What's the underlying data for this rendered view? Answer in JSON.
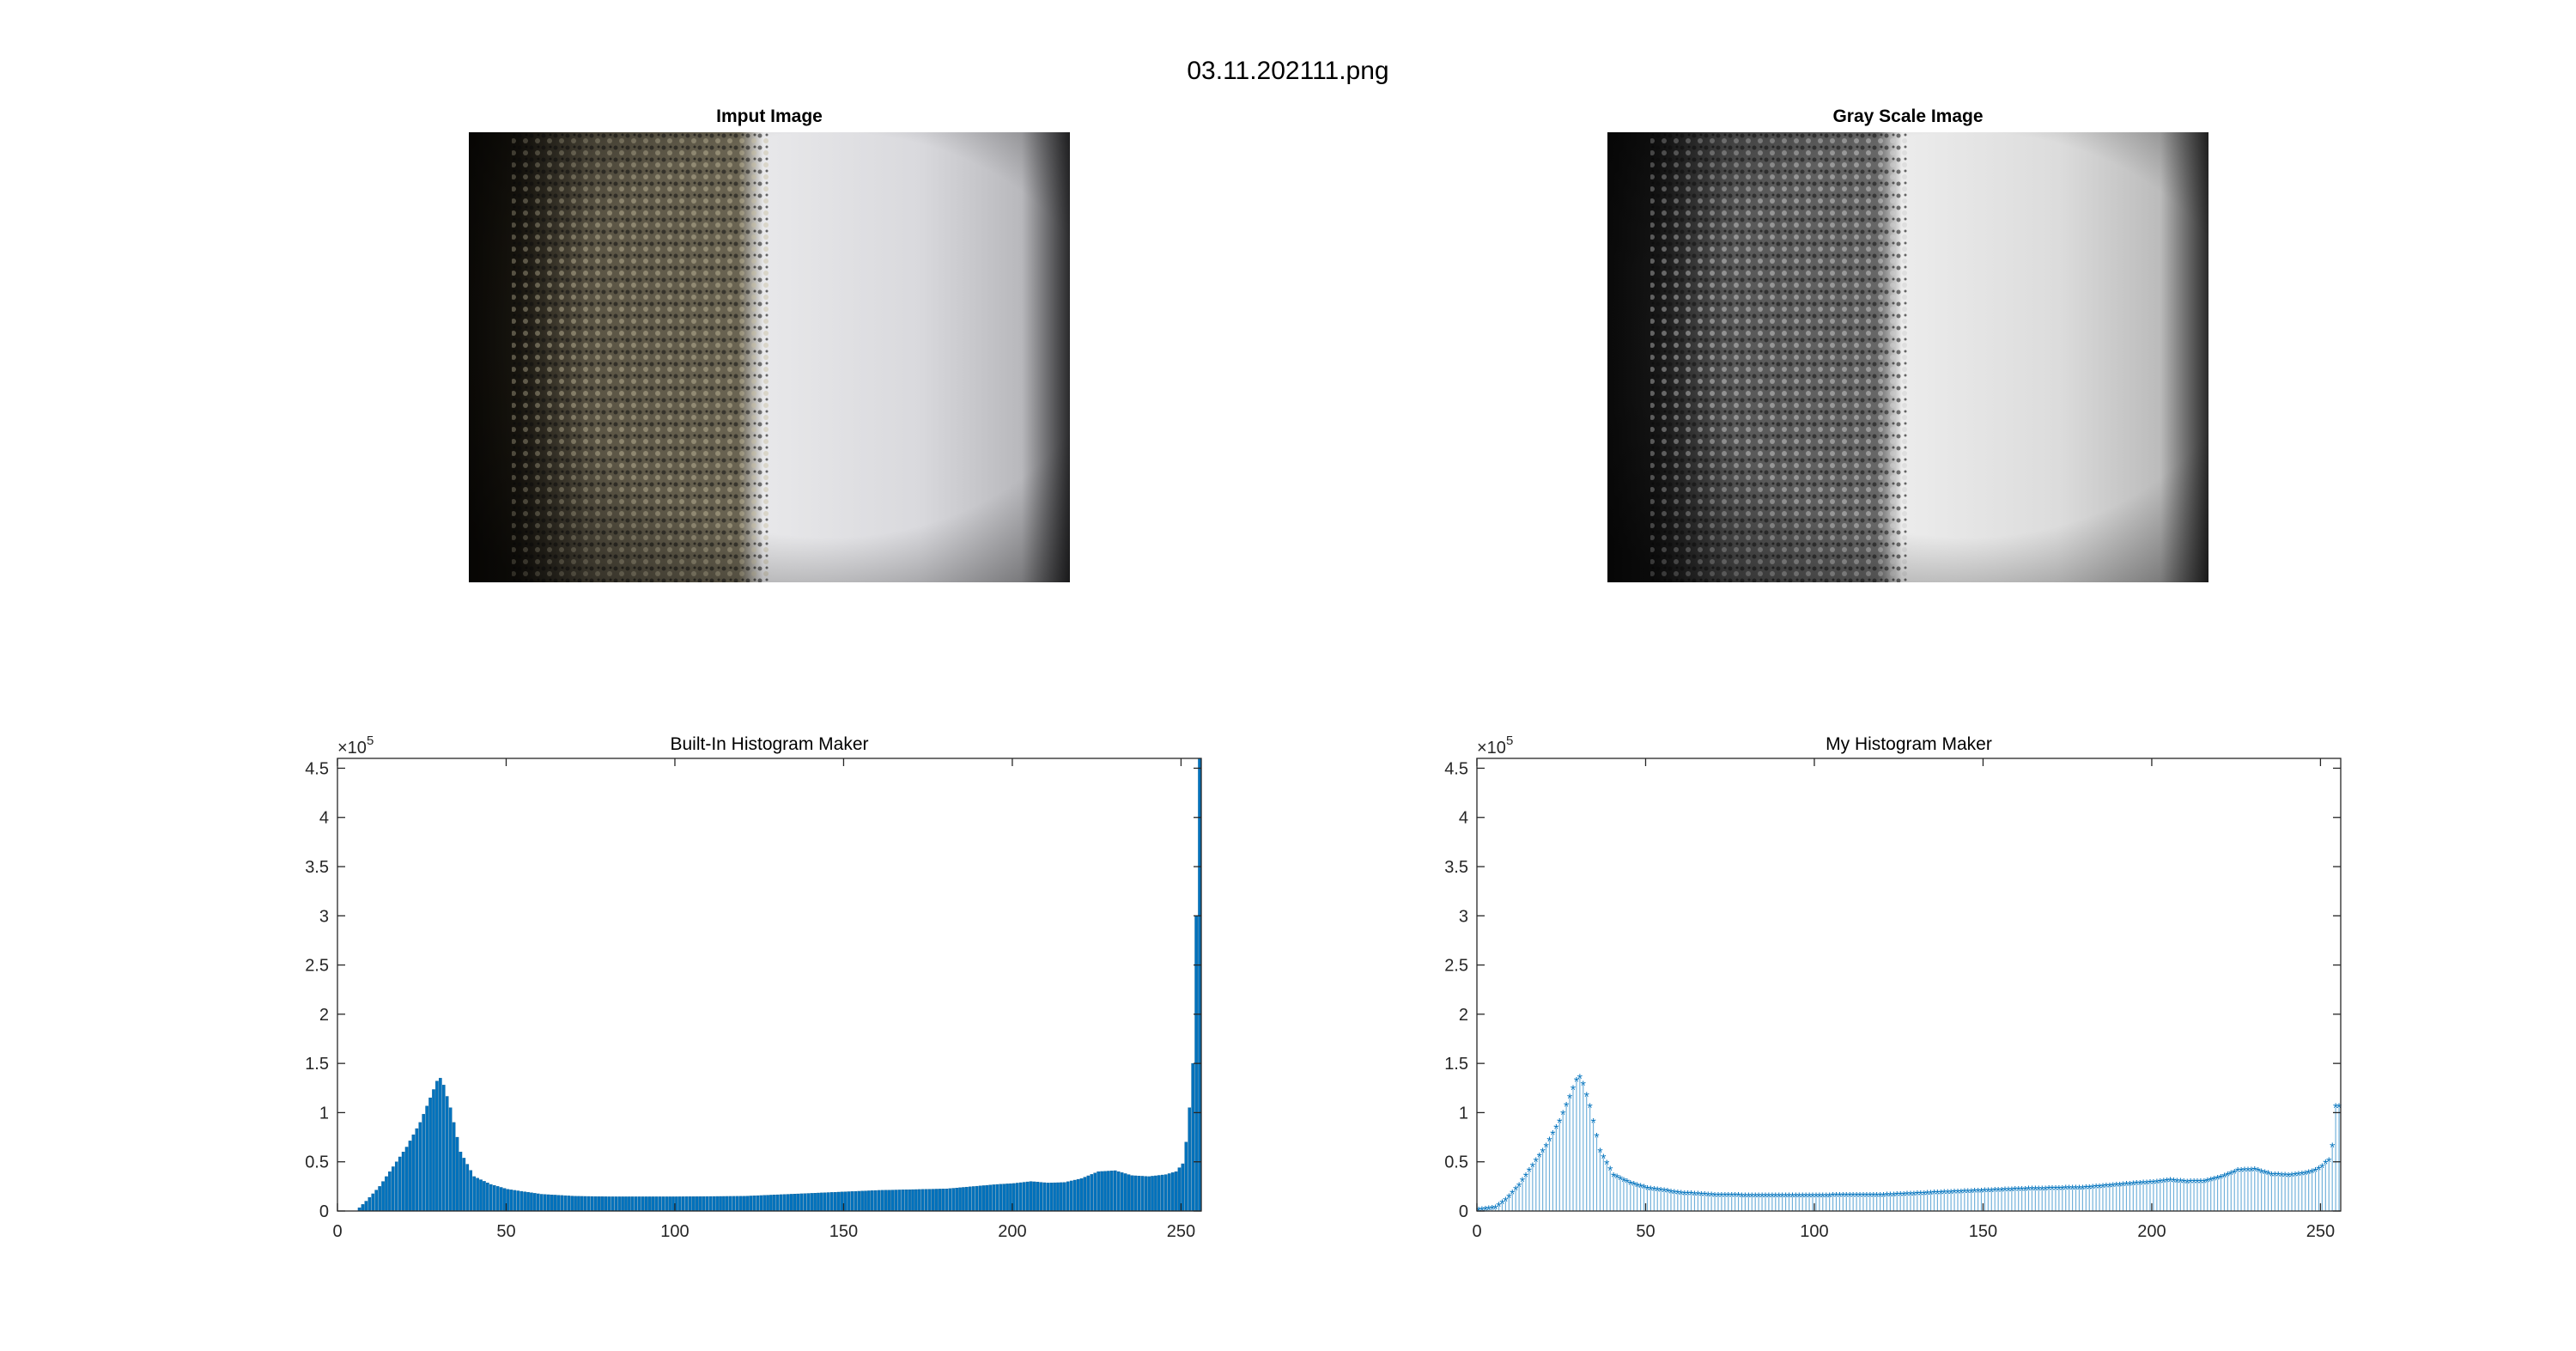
{
  "figure": {
    "title": "03.11.202111.png"
  },
  "images": [
    {
      "title": "Imput Image"
    },
    {
      "title": "Gray Scale Image"
    }
  ],
  "colors": {
    "bar": "#0072BD",
    "axis": "#262626",
    "stem_fill": "#A9CBEB"
  },
  "chart_data": [
    {
      "type": "bar",
      "title": "Built-In Histogram Maker",
      "xlabel": "",
      "ylabel": "",
      "xlim": [
        0,
        256
      ],
      "ylim": [
        0,
        460000
      ],
      "exponent_label": "×10",
      "exponent_power": "5",
      "xticks": [
        "0",
        "50",
        "100",
        "150",
        "200",
        "250"
      ],
      "yticks": [
        "0",
        "0.5",
        "1",
        "1.5",
        "2",
        "2.5",
        "3",
        "3.5",
        "4",
        "4.5"
      ],
      "grid": false,
      "x_bin_points": [
        0,
        5,
        8,
        12,
        16,
        20,
        24,
        27,
        29,
        30,
        31,
        33,
        36,
        40,
        45,
        50,
        60,
        70,
        80,
        100,
        120,
        140,
        160,
        180,
        195,
        200,
        205,
        210,
        215,
        220,
        225,
        230,
        235,
        240,
        245,
        248,
        250,
        251,
        252,
        253,
        254,
        255
      ],
      "values_at_points": [
        0,
        0,
        10000,
        25000,
        45000,
        65000,
        90000,
        115000,
        132000,
        135000,
        128000,
        105000,
        60000,
        35000,
        27000,
        22000,
        17000,
        15000,
        14500,
        14500,
        15000,
        18000,
        21000,
        22500,
        27000,
        28000,
        30000,
        28500,
        29000,
        33000,
        40000,
        41000,
        36000,
        35000,
        37000,
        40000,
        48000,
        70000,
        105000,
        150000,
        300000,
        460000
      ]
    },
    {
      "type": "stem",
      "title": "My Histogram Maker",
      "xlabel": "",
      "ylabel": "",
      "xlim": [
        0,
        256
      ],
      "ylim": [
        0,
        460000
      ],
      "exponent_label": "×10",
      "exponent_power": "5",
      "xticks": [
        "0",
        "50",
        "100",
        "150",
        "200",
        "250"
      ],
      "yticks": [
        "0",
        "0.5",
        "1",
        "1.5",
        "2",
        "2.5",
        "3",
        "3.5",
        "4",
        "4.5"
      ],
      "grid": false,
      "x_bin_points": [
        0,
        5,
        8,
        12,
        16,
        20,
        24,
        27,
        29,
        30,
        31,
        33,
        36,
        40,
        45,
        50,
        60,
        70,
        80,
        100,
        120,
        140,
        160,
        180,
        195,
        200,
        205,
        210,
        215,
        220,
        225,
        230,
        235,
        240,
        245,
        248,
        250,
        251,
        252,
        253,
        254,
        255
      ],
      "values_at_points": [
        0,
        2000,
        10000,
        25000,
        45000,
        65000,
        90000,
        115000,
        132000,
        135000,
        128000,
        105000,
        60000,
        35000,
        27000,
        22000,
        17000,
        15000,
        14500,
        14500,
        15000,
        18000,
        21000,
        22500,
        27000,
        28000,
        30000,
        28500,
        29000,
        33000,
        40000,
        41000,
        36000,
        35000,
        37000,
        40000,
        44000,
        48000,
        50000,
        65000,
        105000,
        105000
      ]
    }
  ]
}
